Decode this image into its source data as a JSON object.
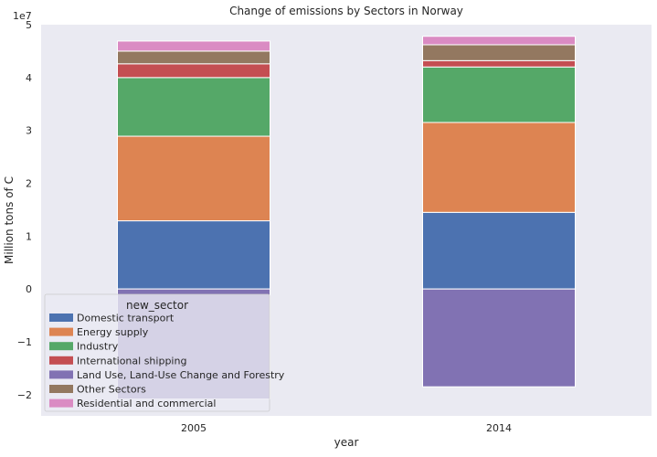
{
  "chart_data": {
    "type": "bar",
    "stacked": true,
    "title": "Change of emissions by Sectors in Norway",
    "xlabel": "year",
    "ylabel": "Million tons of C",
    "offset_label": "1e7",
    "categories": [
      "2005",
      "2014"
    ],
    "ylim": [
      -24000000,
      50000000
    ],
    "yticks": [
      -20000000,
      -10000000,
      0,
      10000000,
      20000000,
      30000000,
      40000000,
      50000000
    ],
    "ytick_labels": [
      "−2",
      "−1",
      "0",
      "1",
      "2",
      "3",
      "4",
      "5"
    ],
    "grid": false,
    "legend": {
      "title": "new_sector",
      "placement": "lower-left"
    },
    "series": [
      {
        "name": "Domestic transport",
        "color": "#4c72b0",
        "values": [
          12900000,
          14500000
        ]
      },
      {
        "name": "Energy supply",
        "color": "#dd8452",
        "values": [
          16000000,
          17000000
        ]
      },
      {
        "name": "Industry",
        "color": "#55a868",
        "values": [
          11100000,
          10500000
        ]
      },
      {
        "name": "International shipping",
        "color": "#c44e52",
        "values": [
          2600000,
          1200000
        ]
      },
      {
        "name": "Land Use, Land-Use Change and Forestry",
        "color": "#8172b3",
        "values": [
          -20800000,
          -18500000
        ]
      },
      {
        "name": "Other Sectors",
        "color": "#937860",
        "values": [
          2400000,
          3000000
        ]
      },
      {
        "name": "Residential and commercial",
        "color": "#da8bc3",
        "values": [
          1900000,
          1600000
        ]
      }
    ]
  }
}
